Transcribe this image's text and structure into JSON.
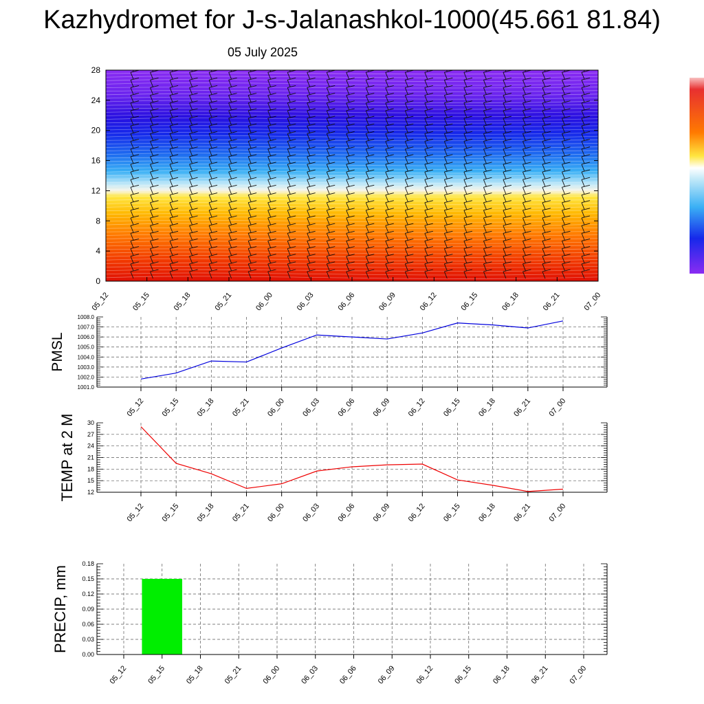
{
  "header": {
    "title": "Kazhydromet for J-s-Jalanashkol-1000(45.661 81.84)",
    "date": "05 July 2025"
  },
  "time_labels": [
    "05_12",
    "05_15",
    "05_18",
    "05_21",
    "06_00",
    "06_03",
    "06_06",
    "06_09",
    "06_12",
    "06_15",
    "06_18",
    "06_21",
    "07_00"
  ],
  "chart_data": [
    {
      "type": "heatmap",
      "xlabel": "",
      "ylabel": "",
      "y_ticks": [
        "0",
        "4",
        "8",
        "12",
        "16",
        "20",
        "24",
        "28"
      ],
      "ylim": [
        0,
        28
      ],
      "color_map": "rainbow: purple-blue-cyan-white-yellow-orange-red",
      "colorbar": true,
      "wind_barbs": true
    },
    {
      "type": "line",
      "ylabel": "PMSL",
      "y_ticks": [
        "1001.0",
        "1002.0",
        "1003.0",
        "1004.0",
        "1005.0",
        "1006.0",
        "1007.0",
        "1008.0"
      ],
      "ylim": [
        1001.0,
        1008.0
      ],
      "color": "#0000dd",
      "grid": true,
      "x": [
        "05_12",
        "05_15",
        "05_18",
        "05_21",
        "06_00",
        "06_03",
        "06_06",
        "06_09",
        "06_12",
        "06_15",
        "06_18",
        "06_21",
        "07_00"
      ],
      "values": [
        1001.8,
        1002.4,
        1003.6,
        1003.5,
        1004.9,
        1006.2,
        1006.0,
        1005.8,
        1006.4,
        1007.4,
        1007.2,
        1006.9,
        1007.6
      ]
    },
    {
      "type": "line",
      "ylabel": "TEMP at 2 M",
      "y_ticks": [
        "12",
        "15",
        "18",
        "21",
        "24",
        "27",
        "30"
      ],
      "ylim": [
        12,
        30
      ],
      "color": "#ee0000",
      "grid": true,
      "x": [
        "05_12",
        "05_15",
        "05_18",
        "05_21",
        "06_00",
        "06_03",
        "06_06",
        "06_09",
        "06_12",
        "06_15",
        "06_18",
        "06_21",
        "07_00"
      ],
      "values": [
        29.0,
        19.5,
        16.8,
        13.0,
        14.2,
        17.5,
        18.6,
        19.1,
        19.3,
        15.2,
        13.8,
        12.2,
        12.8
      ]
    },
    {
      "type": "bar",
      "ylabel": "PRECIP, mm",
      "y_ticks": [
        "0.00",
        "0.03",
        "0.06",
        "0.09",
        "0.12",
        "0.15",
        "0.18"
      ],
      "ylim": [
        0,
        0.18
      ],
      "color": "#00ee00",
      "grid": true,
      "categories": [
        "05_12",
        "05_15",
        "05_18",
        "05_21",
        "06_00",
        "06_03",
        "06_06",
        "06_09",
        "06_12",
        "06_15",
        "06_18",
        "06_21",
        "07_00"
      ],
      "values": [
        0.0,
        0.15,
        0,
        0,
        0,
        0,
        0,
        0,
        0,
        0,
        0,
        0,
        0
      ]
    }
  ]
}
